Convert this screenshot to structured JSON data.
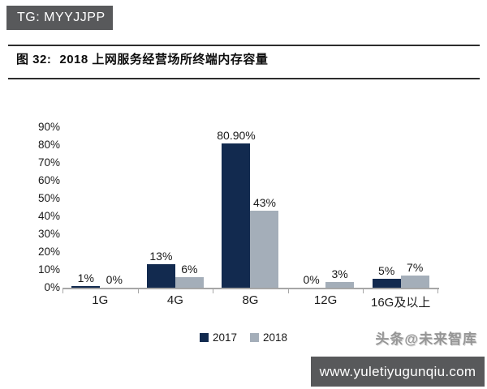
{
  "badge": {
    "text": "TG: MYYJJPP"
  },
  "figure": {
    "label": "图 32:",
    "title": "2018 上网服务经营场所终端内存容量"
  },
  "chart_data": {
    "type": "bar",
    "title": "2018 上网服务经营场所终端内存容量",
    "categories": [
      "1G",
      "4G",
      "8G",
      "12G",
      "16G及以上"
    ],
    "series": [
      {
        "name": "2017",
        "color": "#122A4F",
        "values": [
          1,
          13,
          80.9,
          0,
          5
        ],
        "labels": [
          "1%",
          "13%",
          "80.90%",
          "0%",
          "5%"
        ]
      },
      {
        "name": "2018",
        "color": "#A4AEB9",
        "values": [
          0,
          6,
          43,
          3,
          7
        ],
        "labels": [
          "0%",
          "6%",
          "43%",
          "3%",
          "7%"
        ]
      }
    ],
    "xlabel": "",
    "ylabel": "",
    "ylim": [
      0,
      90
    ],
    "yticks": [
      {
        "value": 0,
        "label": "0%"
      },
      {
        "value": 10,
        "label": "10%"
      },
      {
        "value": 20,
        "label": "20%"
      },
      {
        "value": 30,
        "label": "30%"
      },
      {
        "value": 40,
        "label": "40%"
      },
      {
        "value": 50,
        "label": "50%"
      },
      {
        "value": 60,
        "label": "60%"
      },
      {
        "value": 70,
        "label": "70%"
      },
      {
        "value": 80,
        "label": "80%"
      },
      {
        "value": 90,
        "label": "90%"
      }
    ],
    "grid": false,
    "legend_position": "bottom",
    "axis_color": "#A6A6A6"
  },
  "watermark": {
    "text": "头条@未来智库"
  },
  "footer": {
    "url": "www.yuletiyugunqiu.com"
  },
  "colors": {
    "badge_bg": "#58595B",
    "footer_bg": "#58595B",
    "series_2017": "#122A4F",
    "series_2018": "#A4AEB9"
  }
}
